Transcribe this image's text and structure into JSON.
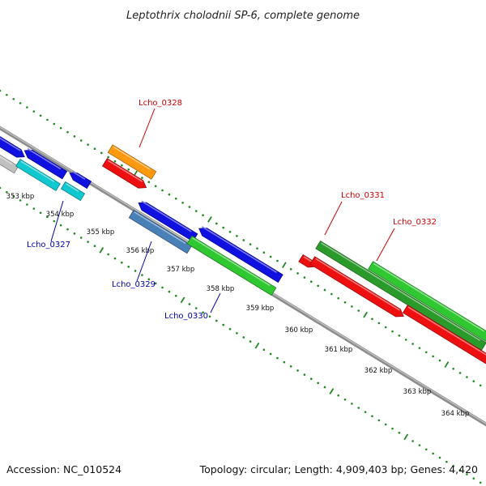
{
  "title": "Leptothrix cholodnii SP-6, complete genome",
  "footer": {
    "accession": "Accession: NC_010524",
    "summary": "Topology: circular; Length: 4,909,403 bp; Genes: 4,420"
  },
  "colors": {
    "backbone": "#8c8c8c",
    "tick_dots": "#1f8a1f",
    "label_forward": "#cc0000",
    "label_reverse": "#0000aa"
  },
  "ticks": [
    "353 kbp",
    "354 kbp",
    "355 kbp",
    "356 kbp",
    "357 kbp",
    "358 kbp",
    "359 kbp",
    "360 kbp",
    "361 kbp",
    "362 kbp",
    "363 kbp",
    "364 kbp"
  ],
  "gene_labels": [
    {
      "text": "Lcho_0327",
      "strand": "reverse"
    },
    {
      "text": "Lcho_0328",
      "strand": "forward"
    },
    {
      "text": "Lcho_0329",
      "strand": "reverse"
    },
    {
      "text": "Lcho_0330",
      "strand": "reverse"
    },
    {
      "text": "Lcho_0331",
      "strand": "forward"
    },
    {
      "text": "Lcho_0332",
      "strand": "forward"
    }
  ],
  "features": [
    {
      "name": "blue-cds-a",
      "color": "#1010e0"
    },
    {
      "name": "blue-cds-b",
      "color": "#1010e0"
    },
    {
      "name": "blue-cds-c",
      "color": "#1010e0"
    },
    {
      "name": "blue-cds-d",
      "color": "#1010e0"
    },
    {
      "name": "blue-cds-e",
      "color": "#1010e0"
    },
    {
      "name": "gray-feature",
      "color": "#c0c0c0"
    },
    {
      "name": "cyan-feature-a",
      "color": "#10c8d0"
    },
    {
      "name": "cyan-feature-b",
      "color": "#10c8d0"
    },
    {
      "name": "orange-feature",
      "color": "#ff9a10"
    },
    {
      "name": "red-cds-a",
      "color": "#ee1010"
    },
    {
      "name": "steelblue-feature",
      "color": "#4a80b8"
    },
    {
      "name": "green-feature-a",
      "color": "#30c830"
    },
    {
      "name": "red-cds-small",
      "color": "#ee1010"
    },
    {
      "name": "darkgreen-feature",
      "color": "#2a9a2a"
    },
    {
      "name": "red-cds-b",
      "color": "#ee1010"
    },
    {
      "name": "red-cds-c",
      "color": "#ee1010"
    },
    {
      "name": "green-feature-b",
      "color": "#30c830"
    }
  ]
}
